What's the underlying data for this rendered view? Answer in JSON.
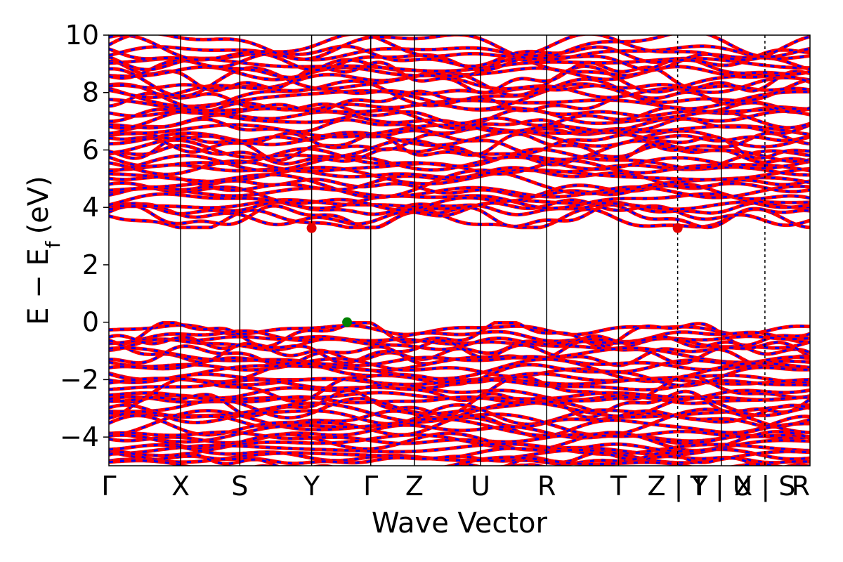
{
  "chart_data": {
    "type": "line",
    "title": "",
    "xlabel": "Wave Vector",
    "ylabel": "E − E",
    "ylabel_sub": "f",
    "ylabel_unit": "(eV)",
    "ylim": [
      -5,
      10
    ],
    "yticks": [
      -4,
      -2,
      0,
      2,
      4,
      6,
      8,
      10
    ],
    "ytick_labels": [
      "−4",
      "−2",
      "0",
      "2",
      "4",
      "6",
      "8",
      "10"
    ],
    "kpath_segments": [
      {
        "from": "Γ",
        "to": "X",
        "length": 1.02
      },
      {
        "from": "X",
        "to": "S",
        "length": 0.84
      },
      {
        "from": "S",
        "to": "Y",
        "length": 1.02
      },
      {
        "from": "Y",
        "to": "Γ",
        "length": 0.84
      },
      {
        "from": "Γ",
        "to": "Z",
        "length": 0.62
      },
      {
        "from": "Z",
        "to": "U",
        "length": 0.94
      },
      {
        "from": "U",
        "to": "R",
        "length": 0.94
      },
      {
        "from": "R",
        "to": "T",
        "length": 1.02
      },
      {
        "from": "T",
        "to": "Z",
        "length": 0.84
      },
      {
        "from": "Y",
        "to": "T",
        "length": 0.62
      },
      {
        "from": "U",
        "to": "X",
        "length": 0.62
      },
      {
        "from": "S",
        "to": "R",
        "length": 0.64
      }
    ],
    "xtick_labels": [
      "Γ",
      "X",
      "S",
      "Y",
      "Γ",
      "Z",
      "U",
      "R",
      "T",
      "Z | Y",
      "T | U",
      "X | S",
      "R"
    ],
    "dashed_breaks_after_segment": [
      8,
      10
    ],
    "band_gap": {
      "vbm": {
        "segment": 3,
        "frac": 0.6,
        "energy": 0.0,
        "color": "#008000"
      },
      "cbm": [
        {
          "segment": 3,
          "frac": 0.0,
          "energy": 3.28,
          "color": "#e60000"
        },
        {
          "segment": 9,
          "frac": 0.0,
          "energy": 3.28,
          "color": "#e60000"
        }
      ]
    },
    "series": [
      {
        "style": "solid",
        "color": "#ff0000"
      },
      {
        "style": "dashed",
        "color": "#0000ff"
      }
    ],
    "conduction_band_count": 44,
    "valence_band_count": 40,
    "cbm_energy": 3.28,
    "vbm_energy": 0.0,
    "grid": false,
    "legend": "none"
  }
}
